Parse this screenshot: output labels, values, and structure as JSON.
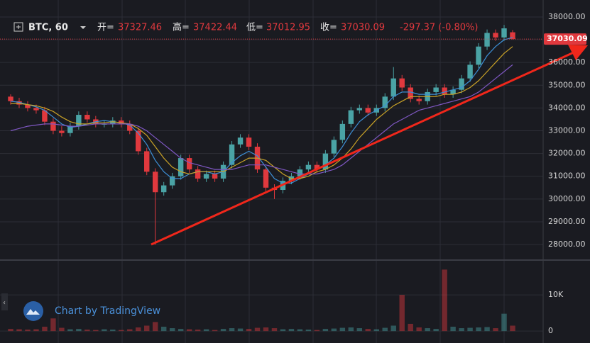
{
  "chart_data": {
    "type": "candlestick",
    "symbol": "BTC, 60",
    "open_key": "开=",
    "high_key": "高=",
    "low_key": "低=",
    "close_key": "收=",
    "change": "-297.37 (-0.80%)",
    "watermark": "Chart by TradingView",
    "up_color": "#4aa3a5",
    "down_color": "#e0393e",
    "open": [
      34500,
      34300,
      34150,
      34000,
      33900,
      33400,
      33000,
      32900,
      33200,
      33700,
      33500,
      33300,
      33300,
      33450,
      33300,
      33000,
      32100,
      31200,
      30300,
      30600,
      31000,
      31800,
      31300,
      30900,
      31100,
      30900,
      31500,
      32400,
      32700,
      32300,
      31300,
      30500,
      30400,
      30800,
      31000,
      31300,
      31500,
      31300,
      32000,
      32600,
      33300,
      33900,
      34000,
      33800,
      34000,
      34500,
      35300,
      34900,
      34400,
      34300,
      34700,
      34900,
      34600,
      34800,
      35300,
      35900,
      36700,
      37300,
      37100,
      37327.46
    ],
    "high": [
      34600,
      34450,
      34300,
      34150,
      34050,
      33550,
      33200,
      33350,
      33850,
      33850,
      33650,
      33450,
      33600,
      33600,
      33450,
      33100,
      32250,
      31350,
      30750,
      31150,
      31950,
      31950,
      31450,
      31250,
      31250,
      31650,
      32550,
      32850,
      32850,
      32450,
      31450,
      30650,
      30950,
      31150,
      31450,
      31650,
      31650,
      32150,
      32750,
      33450,
      34050,
      34150,
      34150,
      34150,
      34650,
      35800,
      35450,
      35050,
      34550,
      34850,
      35050,
      35050,
      34950,
      35450,
      36050,
      36850,
      37450,
      37450,
      37650,
      37422.44
    ],
    "low": [
      34150,
      34000,
      33850,
      33750,
      33250,
      32850,
      32750,
      32750,
      33050,
      33350,
      33150,
      33150,
      33150,
      33150,
      32850,
      31950,
      31050,
      28000,
      30150,
      30450,
      30850,
      31150,
      30750,
      30750,
      30750,
      30750,
      31350,
      32250,
      32150,
      31150,
      30350,
      30000,
      30250,
      30650,
      30850,
      31150,
      31150,
      31150,
      31850,
      32450,
      33150,
      33750,
      33650,
      33650,
      33850,
      34350,
      34750,
      34250,
      34150,
      34150,
      34550,
      34450,
      34450,
      34650,
      35150,
      35750,
      36550,
      36950,
      36950,
      37012.95
    ],
    "close": [
      34300,
      34150,
      34000,
      33900,
      33400,
      33000,
      32900,
      33200,
      33700,
      33500,
      33300,
      33300,
      33450,
      33300,
      33000,
      32100,
      31200,
      30300,
      30600,
      31000,
      31800,
      31300,
      30900,
      31100,
      30900,
      31500,
      32400,
      32700,
      32300,
      31300,
      30500,
      30400,
      30800,
      31000,
      31300,
      31500,
      31300,
      32000,
      32600,
      33300,
      33900,
      34000,
      33800,
      34000,
      34500,
      35300,
      34900,
      34400,
      34300,
      34700,
      34900,
      34600,
      34800,
      35300,
      35900,
      36700,
      37300,
      37100,
      37500,
      37030.09
    ],
    "volume": [
      600,
      500,
      400,
      500,
      1200,
      3500,
      900,
      500,
      600,
      400,
      300,
      500,
      400,
      300,
      500,
      1000,
      1500,
      2500,
      1200,
      800,
      600,
      500,
      400,
      500,
      300,
      600,
      800,
      700,
      600,
      900,
      1000,
      800,
      500,
      600,
      500,
      400,
      300,
      600,
      700,
      900,
      1000,
      800,
      600,
      500,
      900,
      1500,
      10000,
      2000,
      1000,
      800,
      600,
      17000,
      1200,
      800,
      900,
      1000,
      1100,
      800,
      4800,
      1500
    ],
    "series": [
      {
        "color": "#3d8fd6",
        "values": [
          34300,
          34250,
          34150,
          34050,
          33900,
          33600,
          33300,
          33150,
          33200,
          33300,
          33400,
          33450,
          33400,
          33350,
          33250,
          32900,
          32400,
          31700,
          31200,
          30900,
          30900,
          31100,
          31200,
          31200,
          31100,
          31200,
          31600,
          31900,
          32100,
          31900,
          31400,
          30900,
          30700,
          30700,
          30900,
          31100,
          31300,
          31500,
          31800,
          32300,
          32900,
          33400,
          33700,
          33900,
          34100,
          34500,
          34700,
          34700,
          34600,
          34600,
          34600,
          34700,
          34800,
          34900,
          35200,
          35700,
          36300,
          36700,
          37000,
          37100
        ]
      },
      {
        "color": "#c9a227",
        "values": [
          34200,
          34200,
          34150,
          34100,
          34000,
          33850,
          33600,
          33400,
          33300,
          33300,
          33350,
          33350,
          33400,
          33350,
          33300,
          33100,
          32800,
          32300,
          31800,
          31400,
          31200,
          31100,
          31200,
          31200,
          31200,
          31200,
          31400,
          31600,
          31800,
          31800,
          31700,
          31400,
          31100,
          30900,
          30900,
          31000,
          31200,
          31300,
          31500,
          31800,
          32200,
          32700,
          33100,
          33500,
          33800,
          34100,
          34300,
          34500,
          34500,
          34500,
          34500,
          34600,
          34600,
          34700,
          34900,
          35200,
          35600,
          36000,
          36400,
          36700
        ]
      },
      {
        "color": "#7e57c2",
        "values": [
          33000,
          33100,
          33200,
          33250,
          33300,
          33300,
          33250,
          33200,
          33200,
          33250,
          33300,
          33300,
          33300,
          33300,
          33300,
          33200,
          33000,
          32700,
          32400,
          32100,
          31800,
          31600,
          31500,
          31400,
          31300,
          31300,
          31300,
          31400,
          31500,
          31500,
          31500,
          31400,
          31300,
          31200,
          31100,
          31100,
          31100,
          31200,
          31300,
          31500,
          31800,
          32100,
          32400,
          32700,
          33000,
          33300,
          33500,
          33700,
          33900,
          34000,
          34100,
          34200,
          34300,
          34400,
          34500,
          34700,
          35000,
          35300,
          35600,
          35900
        ]
      }
    ],
    "ylim": [
      27380,
      38590
    ],
    "yticks": [
      {
        "value": 28000,
        "label": "28000.00"
      },
      {
        "value": 29000,
        "label": "29000.00"
      },
      {
        "value": 30000,
        "label": "30000.00"
      },
      {
        "value": 31000,
        "label": "31000.00"
      },
      {
        "value": 32000,
        "label": "32000.00"
      },
      {
        "value": 33000,
        "label": "33000.00"
      },
      {
        "value": 34000,
        "label": "34000.00"
      },
      {
        "value": 35000,
        "label": "35000.00"
      },
      {
        "value": 36000,
        "label": "36000.00"
      },
      {
        "value": 37000,
        "label": "37000.00"
      },
      {
        "value": 38000,
        "label": "38000.00"
      }
    ],
    "vol_ylim": [
      -1540,
      18650
    ],
    "vol_yticks": [
      0,
      {
        "value": 10000,
        "label": "10K"
      }
    ],
    "grid": true
  }
}
